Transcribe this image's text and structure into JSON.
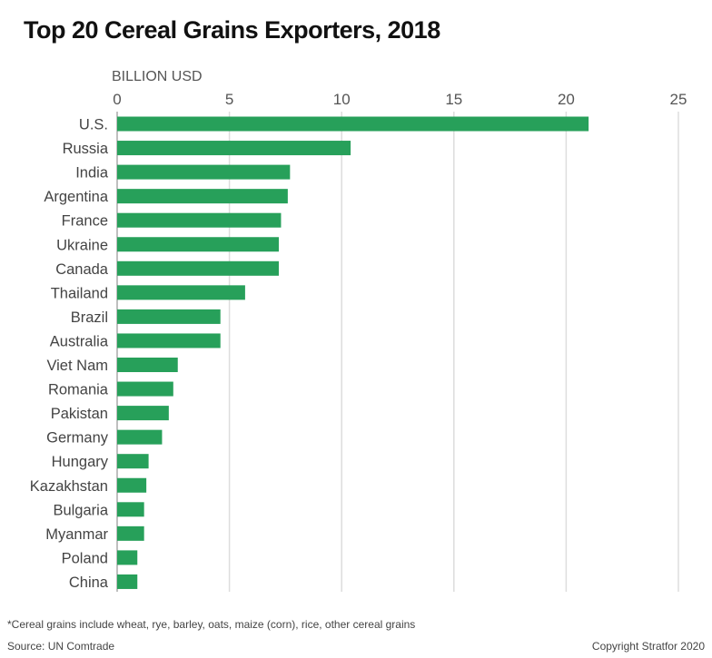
{
  "chart_data": {
    "type": "bar",
    "orientation": "horizontal",
    "title": "Top 20 Cereal Grains Exporters, 2018",
    "xlabel": "BILLION USD",
    "ylabel": "",
    "xlim": [
      0,
      25
    ],
    "x_ticks": [
      0,
      5,
      10,
      15,
      20,
      25
    ],
    "grid": true,
    "bar_color": "#27a05a",
    "categories": [
      "U.S.",
      "Russia",
      "India",
      "Argentina",
      "France",
      "Ukraine",
      "Canada",
      "Thailand",
      "Brazil",
      "Australia",
      "Viet Nam",
      "Romania",
      "Pakistan",
      "Germany",
      "Hungary",
      "Kazakhstan",
      "Bulgaria",
      "Myanmar",
      "Poland",
      "China"
    ],
    "values": [
      21.0,
      10.4,
      7.7,
      7.6,
      7.3,
      7.2,
      7.2,
      5.7,
      4.6,
      4.6,
      2.7,
      2.5,
      2.3,
      2.0,
      1.4,
      1.3,
      1.2,
      1.2,
      0.9,
      0.9
    ]
  },
  "footer": {
    "footnote": "*Cereal grains include wheat, rye, barley, oats, maize (corn), rice, other cereal grains",
    "source": "Source: UN Comtrade",
    "copyright": "Copyright Stratfor 2020"
  }
}
